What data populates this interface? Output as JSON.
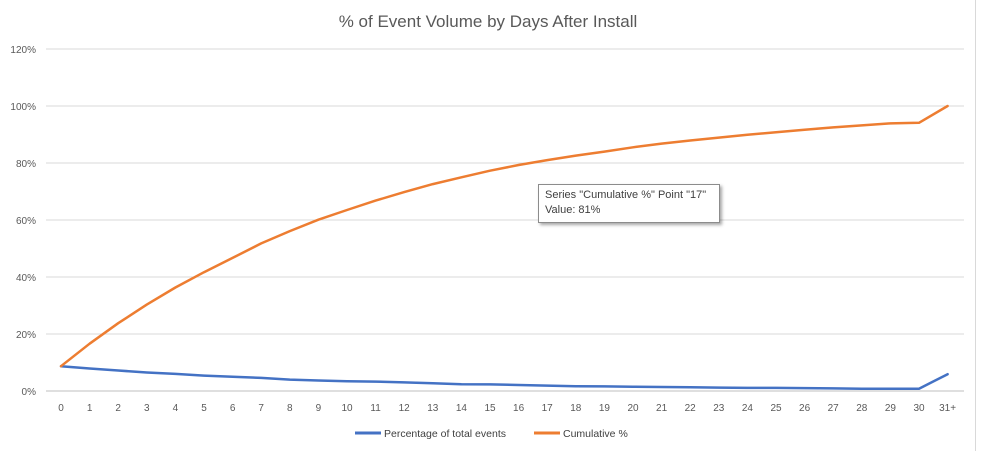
{
  "chart_data": {
    "type": "line",
    "title": "% of Event Volume by Days After Install",
    "categories": [
      "0",
      "1",
      "2",
      "3",
      "4",
      "5",
      "6",
      "7",
      "8",
      "9",
      "10",
      "11",
      "12",
      "13",
      "14",
      "15",
      "16",
      "17",
      "18",
      "19",
      "20",
      "21",
      "22",
      "23",
      "24",
      "25",
      "26",
      "27",
      "28",
      "29",
      "30",
      "31+"
    ],
    "series": [
      {
        "name": "Percentage of total events",
        "color": "#4472c4",
        "values": [
          8.7,
          7.9,
          7.2,
          6.5,
          6.0,
          5.4,
          5.0,
          4.6,
          4.0,
          3.7,
          3.4,
          3.3,
          3.0,
          2.7,
          2.4,
          2.3,
          2.1,
          1.9,
          1.7,
          1.6,
          1.5,
          1.4,
          1.3,
          1.2,
          1.1,
          1.1,
          1.0,
          0.9,
          0.8,
          0.8,
          0.8,
          5.9
        ]
      },
      {
        "name": "Cumulative %",
        "color": "#ed7d31",
        "values": [
          8.7,
          16.6,
          23.8,
          30.3,
          36.3,
          41.7,
          46.7,
          51.8,
          56.1,
          60.1,
          63.5,
          66.8,
          69.8,
          72.6,
          75.0,
          77.3,
          79.3,
          81.0,
          82.6,
          84.0,
          85.5,
          86.8,
          87.9,
          88.9,
          89.9,
          90.8,
          91.7,
          92.5,
          93.2,
          93.9,
          94.1,
          100.0
        ]
      }
    ],
    "y_tick_labels": [
      "0%",
      "20%",
      "40%",
      "60%",
      "80%",
      "100%",
      "120%"
    ],
    "ylim": [
      0,
      120
    ],
    "y_step": 20,
    "xlabel": "",
    "ylabel": "",
    "grid": true,
    "legend_position": "bottom"
  },
  "tooltip": {
    "line1": "Series \"Cumulative %\" Point \"17\"",
    "line2": "Value: 81%"
  }
}
